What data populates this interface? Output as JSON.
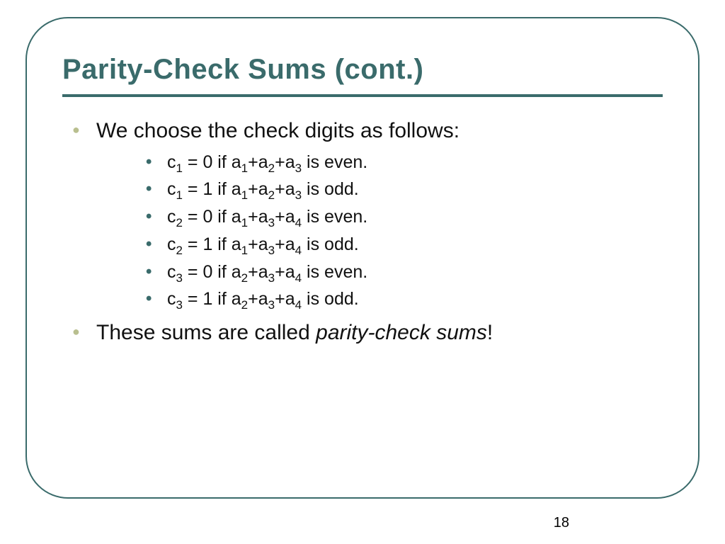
{
  "slide": {
    "title": "Parity-Check Sums (cont.)",
    "title_color": "#3a6b6b",
    "title_fontsize": 40,
    "rule_color": "#3a6b6b",
    "rule_thickness": 4,
    "border_color": "#3a6b6b",
    "border_radius": 60,
    "background": "#ffffff",
    "page_number": "18",
    "bullets": [
      {
        "text": "We choose the check digits as follows:",
        "level": 1,
        "bullet_color": "#b9bf8f",
        "fontsize": 30,
        "children": [
          {
            "c_sub": "1",
            "eq": " = 0 if a",
            "terms": [
              "1",
              "2",
              "3"
            ],
            "cond": " is even."
          },
          {
            "c_sub": "1",
            "eq": " = 1 if a",
            "terms": [
              "1",
              "2",
              "3"
            ],
            "cond": " is odd."
          },
          {
            "c_sub": "2",
            "eq": " = 0 if a",
            "terms": [
              "1",
              "3",
              "4"
            ],
            "cond": " is even."
          },
          {
            "c_sub": "2",
            "eq": " = 1 if a",
            "terms": [
              "1",
              "3",
              "4"
            ],
            "cond": " is odd."
          },
          {
            "c_sub": "3",
            "eq": " = 0 if a",
            "terms": [
              "2",
              "3",
              "4"
            ],
            "cond": " is even."
          },
          {
            "c_sub": "3",
            "eq": " = 1 if a",
            "terms": [
              "2",
              "3",
              "4"
            ],
            "cond": " is odd."
          }
        ],
        "child_bullet_color": "#3a6b6b",
        "child_fontsize": 25
      },
      {
        "text_pre": "These sums are called ",
        "text_italic": "parity-check sums",
        "text_post": "!",
        "level": 1,
        "bullet_color": "#b9bf8f",
        "fontsize": 30
      }
    ]
  }
}
